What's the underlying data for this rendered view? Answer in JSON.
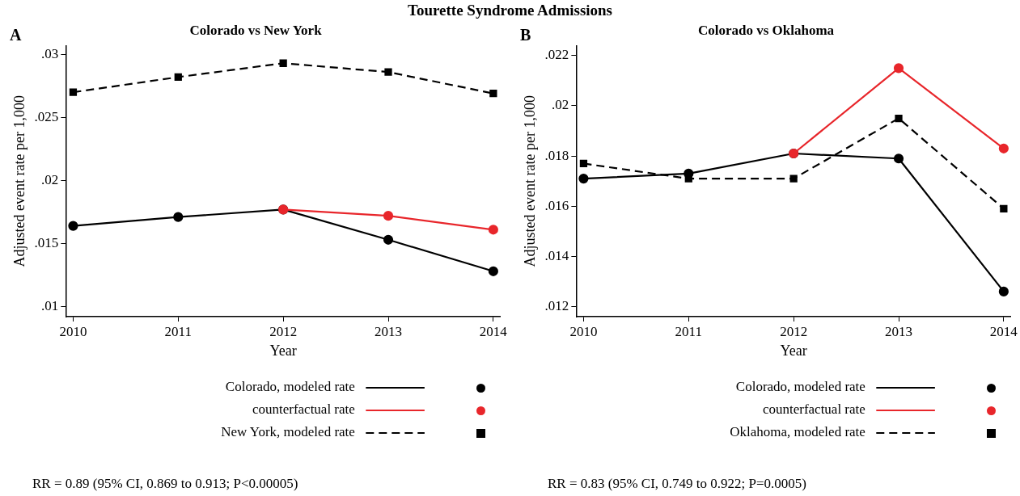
{
  "chart_data": [
    {
      "type": "line",
      "title": "Tourette Syndrome Admissions",
      "subtitle": "Colorado vs New York",
      "xlabel": "Year",
      "ylabel": "Adjusted event rate per 1,000",
      "x": [
        2010,
        2011,
        2012,
        2013,
        2014
      ],
      "series": [
        {
          "name": "Colorado, modeled rate",
          "color": "#000000",
          "marker": "circle",
          "line_style": "solid",
          "values": [
            0.0164,
            0.0171,
            0.0177,
            0.0153,
            0.0128
          ]
        },
        {
          "name": "counterfactual rate",
          "color": "#e8262b",
          "marker": "circle",
          "line_style": "solid",
          "values": [
            null,
            null,
            0.0177,
            0.0172,
            0.0161
          ]
        },
        {
          "name": "New York, modeled rate",
          "color": "#000000",
          "marker": "square",
          "line_style": "dashed",
          "values": [
            0.027,
            0.0282,
            0.0293,
            0.0286,
            0.0269
          ]
        }
      ],
      "xlim": [
        2009.93,
        2014.07
      ],
      "xticks": [
        2010,
        2011,
        2012,
        2013,
        2014
      ],
      "ylim": [
        0.0092,
        0.0307
      ],
      "yticks": [
        {
          "value": 0.01,
          "label": ".01"
        },
        {
          "value": 0.015,
          "label": ".015"
        },
        {
          "value": 0.02,
          "label": ".02"
        },
        {
          "value": 0.025,
          "label": ".025"
        },
        {
          "value": 0.03,
          "label": ".03"
        }
      ],
      "legend": "bottom",
      "annotations": [
        "A",
        "RR = 0.89 (95% CI, 0.869 to 0.913; P<0.00005)"
      ]
    },
    {
      "type": "line",
      "subtitle": "Colorado vs Oklahoma",
      "xlabel": "Year",
      "ylabel": "Adjusted event rate per 1,000",
      "x": [
        2010,
        2011,
        2012,
        2013,
        2014
      ],
      "series": [
        {
          "name": "Colorado, modeled rate",
          "color": "#000000",
          "marker": "circle",
          "line_style": "solid",
          "values": [
            0.0171,
            0.0173,
            0.0181,
            0.0179,
            0.0126
          ]
        },
        {
          "name": "counterfactual rate",
          "color": "#e8262b",
          "marker": "circle",
          "line_style": "solid",
          "values": [
            null,
            null,
            0.0181,
            0.0215,
            0.0183
          ]
        },
        {
          "name": "Oklahoma, modeled rate",
          "color": "#000000",
          "marker": "square",
          "line_style": "dashed",
          "values": [
            0.0177,
            0.0171,
            0.0171,
            0.0195,
            0.0159
          ]
        }
      ],
      "xlim": [
        2009.93,
        2014.07
      ],
      "xticks": [
        2010,
        2011,
        2012,
        2013,
        2014
      ],
      "ylim": [
        0.0116,
        0.0224
      ],
      "yticks": [
        {
          "value": 0.012,
          "label": ".012"
        },
        {
          "value": 0.014,
          "label": ".014"
        },
        {
          "value": 0.016,
          "label": ".016"
        },
        {
          "value": 0.018,
          "label": ".018"
        },
        {
          "value": 0.02,
          "label": ".02"
        },
        {
          "value": 0.022,
          "label": ".022"
        }
      ],
      "legend": "bottom",
      "annotations": [
        "B",
        "RR = 0.83 (95% CI, 0.749 to 0.922; P=0.0005)"
      ]
    }
  ]
}
